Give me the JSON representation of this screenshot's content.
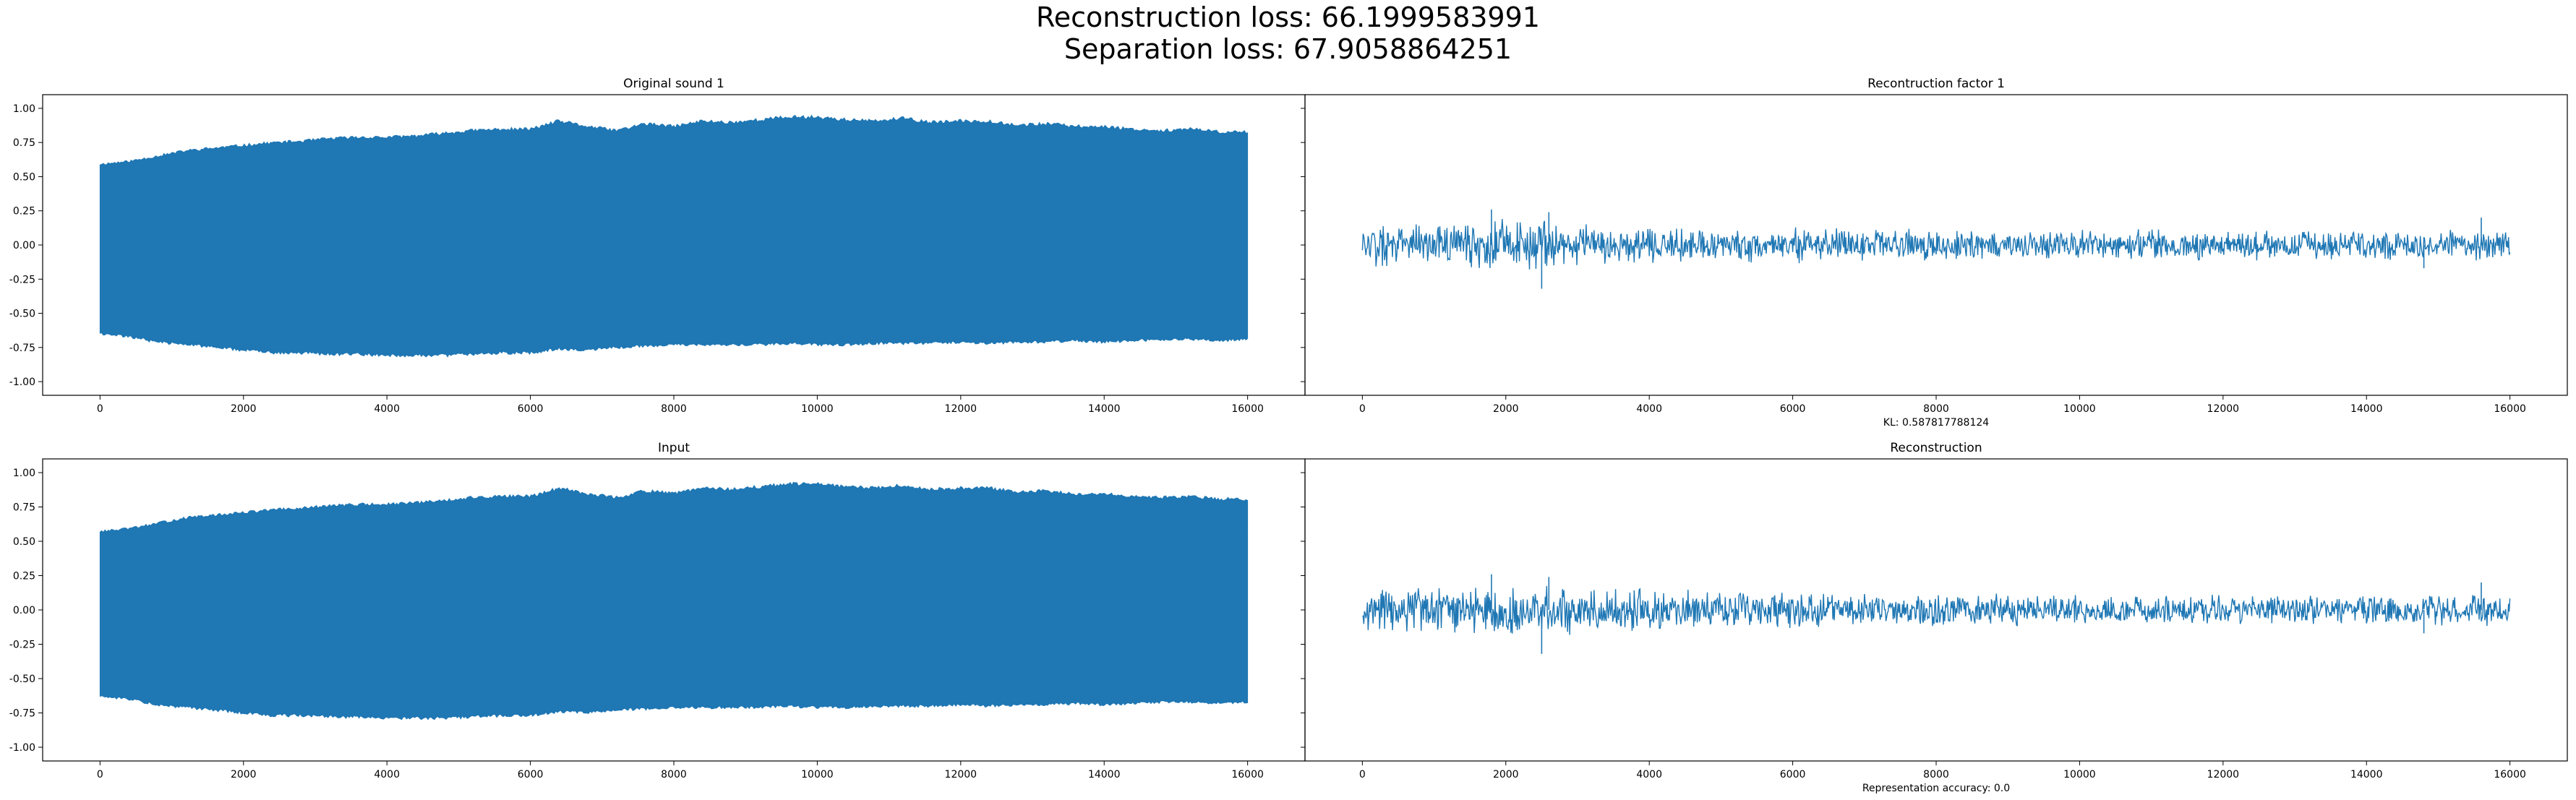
{
  "figure": {
    "suptitle_line1": "Reconstruction loss: 66.1999583991",
    "suptitle_line2": "Separation loss: 67.9058864251"
  },
  "chart_data": [
    {
      "type": "line",
      "title": "Original sound 1",
      "xlabel": "",
      "ylabel": "",
      "xlim": [
        -800,
        16800
      ],
      "ylim": [
        -1.1,
        1.1
      ],
      "xticks": [
        0,
        2000,
        4000,
        6000,
        8000,
        10000,
        12000,
        14000,
        16000
      ],
      "yticks": [
        -1.0,
        -0.75,
        -0.5,
        -0.25,
        0.0,
        0.25,
        0.5,
        0.75,
        1.0
      ],
      "show_y_tick_labels": true,
      "color": "#1f77b4",
      "series": [
        {
          "kind": "envelope",
          "x": [
            0,
            400,
            800,
            1200,
            1600,
            2000,
            2400,
            2800,
            3200,
            3600,
            4000,
            4400,
            4800,
            5200,
            5600,
            6000,
            6400,
            6800,
            7200,
            7600,
            8000,
            8400,
            8800,
            9200,
            9600,
            10000,
            10400,
            10800,
            11200,
            11600,
            12000,
            12400,
            12800,
            13200,
            13600,
            14000,
            14400,
            14800,
            15200,
            15600,
            16000
          ],
          "upper": [
            0.6,
            0.62,
            0.66,
            0.7,
            0.72,
            0.74,
            0.76,
            0.77,
            0.79,
            0.8,
            0.8,
            0.81,
            0.83,
            0.85,
            0.86,
            0.86,
            0.92,
            0.88,
            0.85,
            0.9,
            0.88,
            0.92,
            0.91,
            0.93,
            0.95,
            0.95,
            0.93,
            0.92,
            0.94,
            0.91,
            0.92,
            0.92,
            0.89,
            0.9,
            0.88,
            0.88,
            0.86,
            0.85,
            0.86,
            0.84,
            0.84
          ],
          "lower": [
            -0.66,
            -0.68,
            -0.72,
            -0.74,
            -0.76,
            -0.78,
            -0.8,
            -0.8,
            -0.81,
            -0.81,
            -0.82,
            -0.82,
            -0.82,
            -0.81,
            -0.8,
            -0.8,
            -0.77,
            -0.78,
            -0.76,
            -0.75,
            -0.74,
            -0.74,
            -0.74,
            -0.74,
            -0.73,
            -0.74,
            -0.74,
            -0.73,
            -0.73,
            -0.73,
            -0.72,
            -0.73,
            -0.72,
            -0.72,
            -0.71,
            -0.72,
            -0.71,
            -0.7,
            -0.7,
            -0.71,
            -0.7
          ]
        }
      ]
    },
    {
      "type": "line",
      "title": "Recontruction factor 1",
      "xlabel": "KL: 0.587817788124",
      "ylabel": "",
      "xlim": [
        -800,
        16800
      ],
      "ylim": [
        -1.1,
        1.1
      ],
      "xticks": [
        0,
        2000,
        4000,
        6000,
        8000,
        10000,
        12000,
        14000,
        16000
      ],
      "yticks": [
        -1.0,
        -0.75,
        -0.5,
        -0.25,
        0.0,
        0.25,
        0.5,
        0.75,
        1.0
      ],
      "show_y_tick_labels": false,
      "color": "#1f77b4",
      "series": [
        {
          "kind": "noise",
          "x": [
            0,
            2000,
            4000,
            6000,
            8000,
            10000,
            12000,
            14000,
            16000
          ],
          "amplitude": [
            0.17,
            0.2,
            0.16,
            0.14,
            0.13,
            0.12,
            0.12,
            0.12,
            0.12
          ],
          "spikes": [
            [
              2500,
              -0.32
            ],
            [
              2600,
              0.24
            ],
            [
              1800,
              0.26
            ],
            [
              15600,
              0.2
            ],
            [
              14800,
              -0.17
            ]
          ]
        }
      ]
    },
    {
      "type": "line",
      "title": "Input",
      "xlabel": "",
      "ylabel": "",
      "xlim": [
        -800,
        16800
      ],
      "ylim": [
        -1.1,
        1.1
      ],
      "xticks": [
        0,
        2000,
        4000,
        6000,
        8000,
        10000,
        12000,
        14000,
        16000
      ],
      "yticks": [
        -1.0,
        -0.75,
        -0.5,
        -0.25,
        0.0,
        0.25,
        0.5,
        0.75,
        1.0
      ],
      "show_y_tick_labels": true,
      "color": "#1f77b4",
      "series": [
        {
          "kind": "envelope",
          "x": [
            0,
            400,
            800,
            1200,
            1600,
            2000,
            2400,
            2800,
            3200,
            3600,
            4000,
            4400,
            4800,
            5200,
            5600,
            6000,
            6400,
            6800,
            7200,
            7600,
            8000,
            8400,
            8800,
            9200,
            9600,
            10000,
            10400,
            10800,
            11200,
            11600,
            12000,
            12400,
            12800,
            13200,
            13600,
            14000,
            14400,
            14800,
            15200,
            15600,
            16000
          ],
          "upper": [
            0.58,
            0.6,
            0.64,
            0.68,
            0.7,
            0.72,
            0.74,
            0.75,
            0.77,
            0.78,
            0.78,
            0.79,
            0.81,
            0.83,
            0.84,
            0.84,
            0.9,
            0.86,
            0.83,
            0.88,
            0.86,
            0.9,
            0.89,
            0.91,
            0.93,
            0.93,
            0.91,
            0.9,
            0.92,
            0.89,
            0.9,
            0.9,
            0.87,
            0.88,
            0.86,
            0.86,
            0.84,
            0.83,
            0.84,
            0.82,
            0.82
          ],
          "lower": [
            -0.64,
            -0.66,
            -0.7,
            -0.72,
            -0.74,
            -0.76,
            -0.78,
            -0.78,
            -0.79,
            -0.79,
            -0.8,
            -0.8,
            -0.8,
            -0.79,
            -0.78,
            -0.78,
            -0.75,
            -0.76,
            -0.74,
            -0.73,
            -0.72,
            -0.72,
            -0.72,
            -0.72,
            -0.71,
            -0.72,
            -0.72,
            -0.71,
            -0.71,
            -0.71,
            -0.7,
            -0.71,
            -0.7,
            -0.7,
            -0.69,
            -0.7,
            -0.69,
            -0.68,
            -0.68,
            -0.69,
            -0.68
          ]
        }
      ]
    },
    {
      "type": "line",
      "title": "Reconstruction",
      "xlabel": "Representation accuracy: 0.0",
      "ylabel": "",
      "xlim": [
        -800,
        16800
      ],
      "ylim": [
        -1.1,
        1.1
      ],
      "xticks": [
        0,
        2000,
        4000,
        6000,
        8000,
        10000,
        12000,
        14000,
        16000
      ],
      "yticks": [
        -1.0,
        -0.75,
        -0.5,
        -0.25,
        0.0,
        0.25,
        0.5,
        0.75,
        1.0
      ],
      "show_y_tick_labels": false,
      "color": "#1f77b4",
      "series": [
        {
          "kind": "noise",
          "x": [
            0,
            2000,
            4000,
            6000,
            8000,
            10000,
            12000,
            14000,
            16000
          ],
          "amplitude": [
            0.17,
            0.2,
            0.16,
            0.14,
            0.13,
            0.12,
            0.12,
            0.12,
            0.12
          ],
          "spikes": [
            [
              2500,
              -0.32
            ],
            [
              2600,
              0.24
            ],
            [
              1800,
              0.26
            ],
            [
              15600,
              0.2
            ],
            [
              14800,
              -0.17
            ]
          ]
        }
      ]
    }
  ]
}
